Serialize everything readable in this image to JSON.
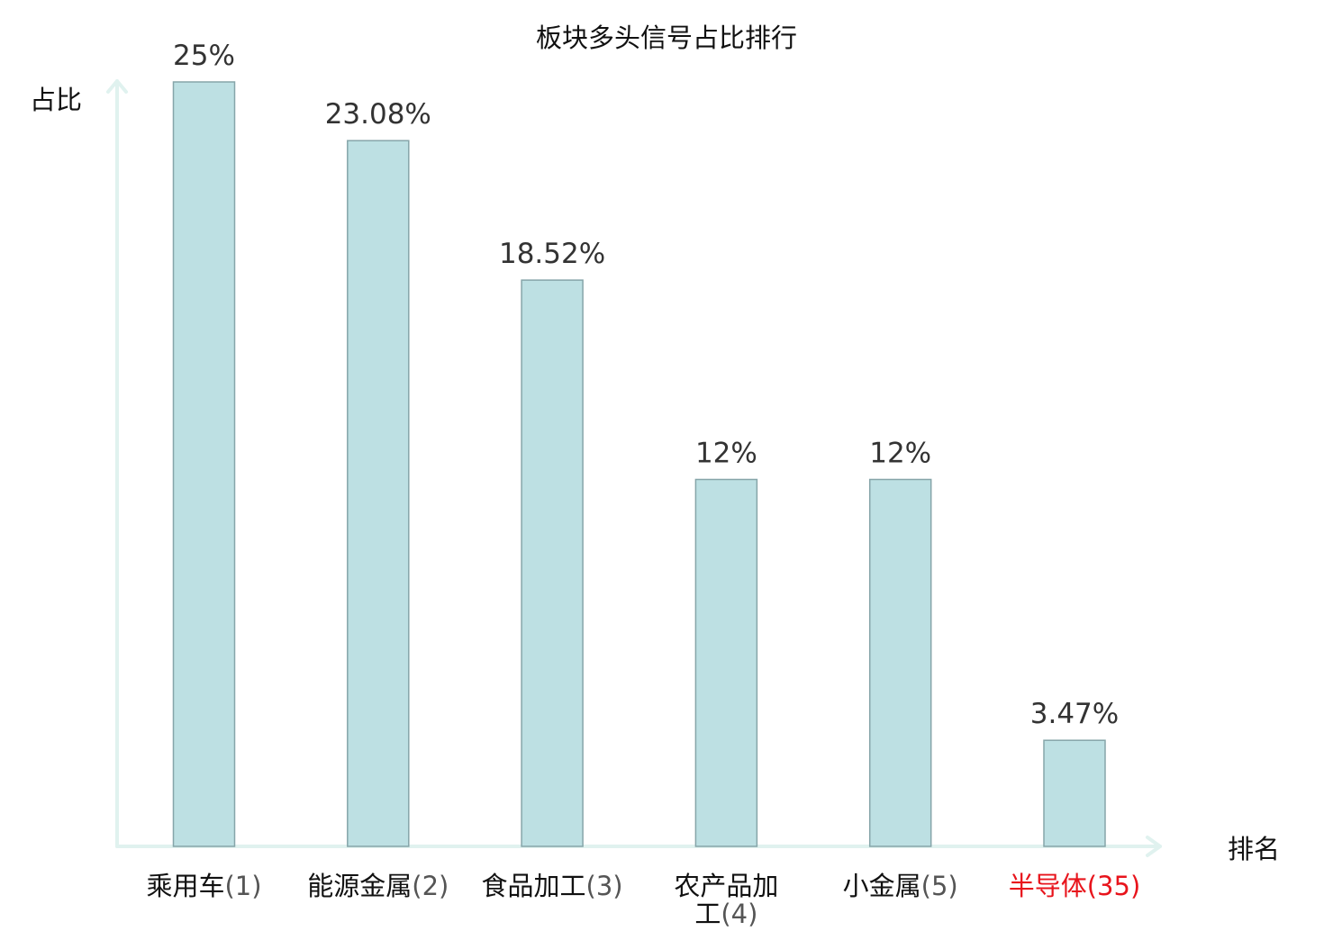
{
  "chart_data": {
    "type": "bar",
    "title": "板块多头信号占比排行",
    "xlabel": "排名",
    "ylabel": "占比",
    "ylim": [
      0,
      25
    ],
    "grid": false,
    "legend": "none",
    "categories": [
      {
        "name": "乘用车",
        "rank": "(1)",
        "highlight": false
      },
      {
        "name": "能源金属",
        "rank": "(2)",
        "highlight": false
      },
      {
        "name": "食品加工",
        "rank": "(3)",
        "highlight": false
      },
      {
        "name": "农产品加工",
        "rank": "(4)",
        "highlight": false
      },
      {
        "name": "小金属",
        "rank": "(5)",
        "highlight": false
      },
      {
        "name": "半导体",
        "rank": "(35)",
        "highlight": true
      }
    ],
    "values": [
      25,
      23.08,
      18.52,
      12,
      12,
      3.47
    ],
    "value_labels": [
      "25%",
      "23.08%",
      "18.52%",
      "12%",
      "12%",
      "3.47%"
    ]
  },
  "colors": {
    "bar_fill": "#bde0e3",
    "bar_stroke": "#86a5a9",
    "axis": "#e0f2ef",
    "text": "#333333",
    "rank_text": "#555555",
    "highlight": "#e8141c",
    "label_text": "#111111"
  }
}
